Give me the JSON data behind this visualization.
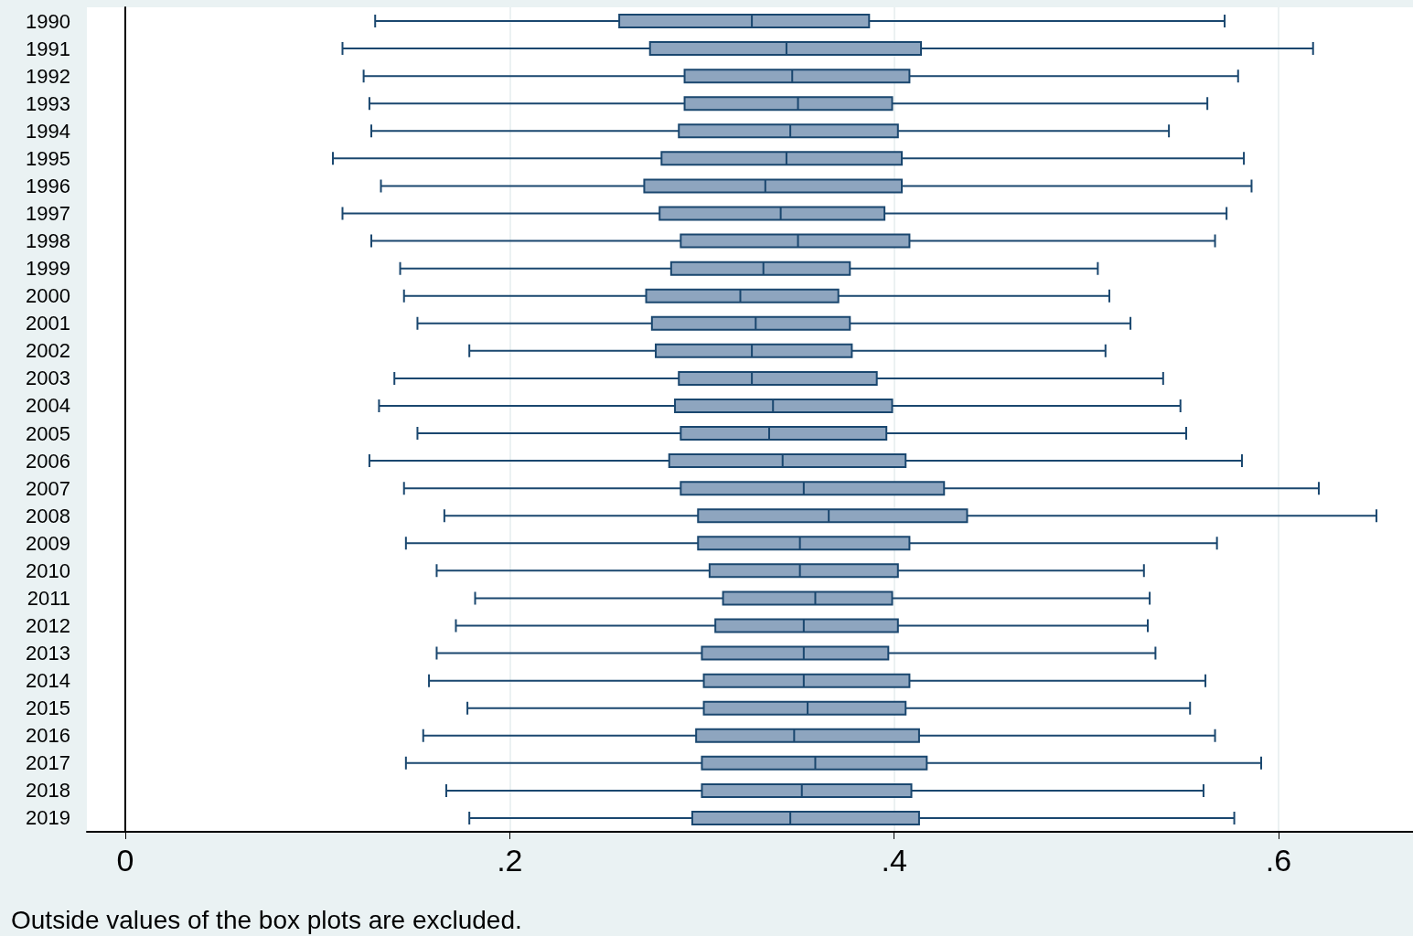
{
  "chart_data": {
    "type": "box",
    "orientation": "horizontal",
    "color": "#8ea5bf",
    "categories": [
      "1990",
      "1991",
      "1992",
      "1993",
      "1994",
      "1995",
      "1996",
      "1997",
      "1998",
      "1999",
      "2000",
      "2001",
      "2002",
      "2003",
      "2004",
      "2005",
      "2006",
      "2007",
      "2008",
      "2009",
      "2010",
      "2011",
      "2012",
      "2013",
      "2014",
      "2015",
      "2016",
      "2017",
      "2018",
      "2019"
    ],
    "boxes": [
      {
        "low": 0.13,
        "q1": 0.257,
        "median": 0.326,
        "q3": 0.387,
        "high": 0.572
      },
      {
        "low": 0.113,
        "q1": 0.273,
        "median": 0.344,
        "q3": 0.414,
        "high": 0.618
      },
      {
        "low": 0.124,
        "q1": 0.291,
        "median": 0.347,
        "q3": 0.408,
        "high": 0.579
      },
      {
        "low": 0.127,
        "q1": 0.291,
        "median": 0.35,
        "q3": 0.399,
        "high": 0.563
      },
      {
        "low": 0.128,
        "q1": 0.288,
        "median": 0.346,
        "q3": 0.402,
        "high": 0.543
      },
      {
        "low": 0.108,
        "q1": 0.279,
        "median": 0.344,
        "q3": 0.404,
        "high": 0.582
      },
      {
        "low": 0.133,
        "q1": 0.27,
        "median": 0.333,
        "q3": 0.404,
        "high": 0.586
      },
      {
        "low": 0.113,
        "q1": 0.278,
        "median": 0.341,
        "q3": 0.395,
        "high": 0.573
      },
      {
        "low": 0.128,
        "q1": 0.289,
        "median": 0.35,
        "q3": 0.408,
        "high": 0.567
      },
      {
        "low": 0.143,
        "q1": 0.284,
        "median": 0.332,
        "q3": 0.377,
        "high": 0.506
      },
      {
        "low": 0.145,
        "q1": 0.271,
        "median": 0.32,
        "q3": 0.371,
        "high": 0.512
      },
      {
        "low": 0.152,
        "q1": 0.274,
        "median": 0.328,
        "q3": 0.377,
        "high": 0.523
      },
      {
        "low": 0.179,
        "q1": 0.276,
        "median": 0.326,
        "q3": 0.378,
        "high": 0.51
      },
      {
        "low": 0.14,
        "q1": 0.288,
        "median": 0.326,
        "q3": 0.391,
        "high": 0.54
      },
      {
        "low": 0.132,
        "q1": 0.286,
        "median": 0.337,
        "q3": 0.399,
        "high": 0.549
      },
      {
        "low": 0.152,
        "q1": 0.289,
        "median": 0.335,
        "q3": 0.396,
        "high": 0.552
      },
      {
        "low": 0.127,
        "q1": 0.283,
        "median": 0.342,
        "q3": 0.406,
        "high": 0.581
      },
      {
        "low": 0.145,
        "q1": 0.289,
        "median": 0.353,
        "q3": 0.426,
        "high": 0.621
      },
      {
        "low": 0.166,
        "q1": 0.298,
        "median": 0.366,
        "q3": 0.438,
        "high": 0.651
      },
      {
        "low": 0.146,
        "q1": 0.298,
        "median": 0.351,
        "q3": 0.408,
        "high": 0.568
      },
      {
        "low": 0.162,
        "q1": 0.304,
        "median": 0.351,
        "q3": 0.402,
        "high": 0.53
      },
      {
        "low": 0.182,
        "q1": 0.311,
        "median": 0.359,
        "q3": 0.399,
        "high": 0.533
      },
      {
        "low": 0.172,
        "q1": 0.307,
        "median": 0.353,
        "q3": 0.402,
        "high": 0.532
      },
      {
        "low": 0.162,
        "q1": 0.3,
        "median": 0.353,
        "q3": 0.397,
        "high": 0.536
      },
      {
        "low": 0.158,
        "q1": 0.301,
        "median": 0.353,
        "q3": 0.408,
        "high": 0.562
      },
      {
        "low": 0.178,
        "q1": 0.301,
        "median": 0.355,
        "q3": 0.406,
        "high": 0.554
      },
      {
        "low": 0.155,
        "q1": 0.297,
        "median": 0.348,
        "q3": 0.413,
        "high": 0.567
      },
      {
        "low": 0.146,
        "q1": 0.3,
        "median": 0.359,
        "q3": 0.417,
        "high": 0.591
      },
      {
        "low": 0.167,
        "q1": 0.3,
        "median": 0.352,
        "q3": 0.409,
        "high": 0.561
      },
      {
        "low": 0.179,
        "q1": 0.295,
        "median": 0.346,
        "q3": 0.413,
        "high": 0.577
      }
    ],
    "xlim": [
      -0.02,
      0.67
    ],
    "xticks": [
      {
        "value": 0,
        "label": "0"
      },
      {
        "value": 0.2,
        "label": ".2"
      },
      {
        "value": 0.4,
        "label": ".4"
      },
      {
        "value": 0.6,
        "label": ".6"
      }
    ],
    "grid": "x",
    "annotations": [
      "Outside values of the box plots are excluded."
    ]
  }
}
